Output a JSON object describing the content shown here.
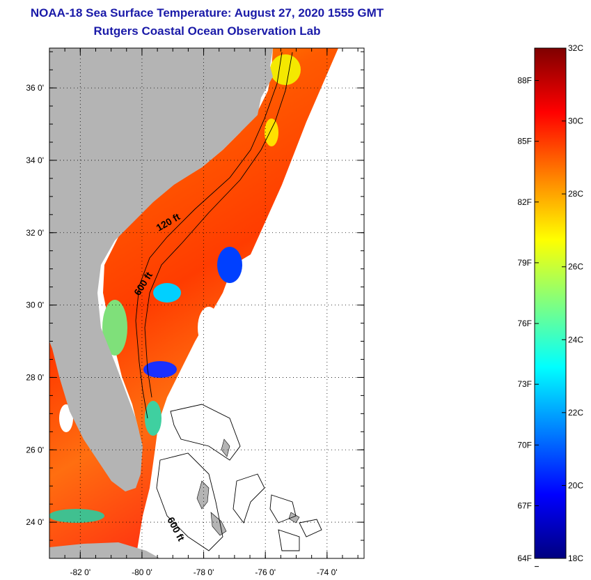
{
  "title": {
    "line1": "NOAA-18 Sea Surface Temperature:  August 27, 2020 1555 GMT",
    "line2": "Rutgers Coastal Ocean Observation Lab"
  },
  "map": {
    "lon_range": [
      -83,
      -72.8
    ],
    "lat_range": [
      23,
      37.1
    ],
    "lon_ticks": [
      {
        "v": -82,
        "label": "-82 0'"
      },
      {
        "v": -80,
        "label": "-80 0'"
      },
      {
        "v": -78,
        "label": "-78 0'"
      },
      {
        "v": -76,
        "label": "-76 0'"
      },
      {
        "v": -74,
        "label": "-74 0'"
      }
    ],
    "lat_ticks": [
      {
        "v": 24,
        "label": "24 0'"
      },
      {
        "v": 26,
        "label": "26 0'"
      },
      {
        "v": 28,
        "label": "28 0'"
      },
      {
        "v": 30,
        "label": "30 0'"
      },
      {
        "v": 32,
        "label": "32 0'"
      },
      {
        "v": 34,
        "label": "34 0'"
      },
      {
        "v": 36,
        "label": "36 0'"
      }
    ],
    "contour_labels": [
      "120 ft",
      "600 ft",
      "600 ft"
    ],
    "colors": {
      "land": "#b4b4b4",
      "no_data": "#ffffff",
      "contour": "#000000"
    }
  },
  "colorbar": {
    "c_range": [
      18,
      32
    ],
    "f_labels": [
      {
        "v": 64,
        "label": "64F"
      },
      {
        "v": 67,
        "label": "67F"
      },
      {
        "v": 70,
        "label": "70F"
      },
      {
        "v": 73,
        "label": "73F"
      },
      {
        "v": 76,
        "label": "76F"
      },
      {
        "v": 79,
        "label": "79F"
      },
      {
        "v": 82,
        "label": "82F"
      },
      {
        "v": 85,
        "label": "85F"
      },
      {
        "v": 88,
        "label": "88F"
      }
    ],
    "c_labels": [
      {
        "v": 18,
        "label": "18C"
      },
      {
        "v": 20,
        "label": "20C"
      },
      {
        "v": 22,
        "label": "22C"
      },
      {
        "v": 24,
        "label": "24C"
      },
      {
        "v": 26,
        "label": "26C"
      },
      {
        "v": 28,
        "label": "28C"
      },
      {
        "v": 30,
        "label": "30C"
      },
      {
        "v": 32,
        "label": "32C"
      }
    ],
    "stops": [
      "#00007f",
      "#0000ff",
      "#0080ff",
      "#00ffff",
      "#80ff80",
      "#ffff00",
      "#ff8000",
      "#ff0000",
      "#7f0000"
    ]
  }
}
